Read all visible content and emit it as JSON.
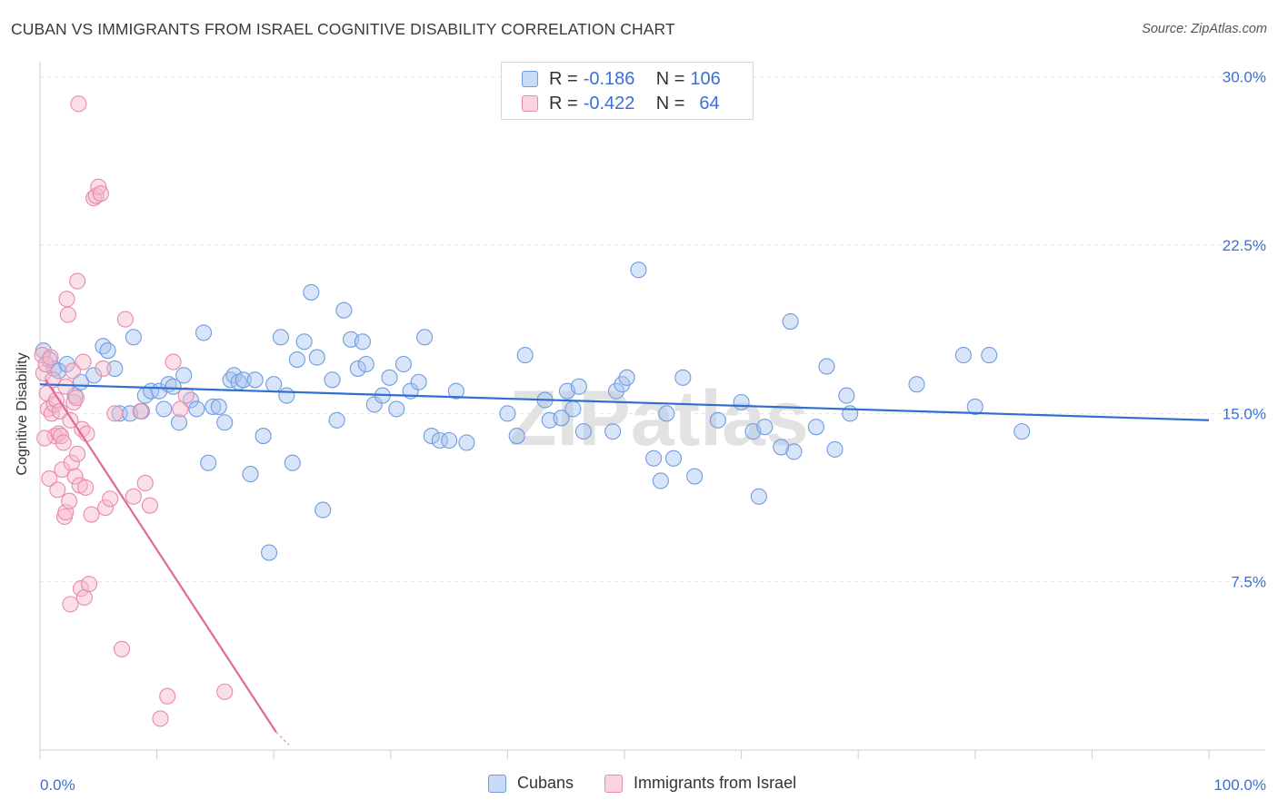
{
  "title": "CUBAN VS IMMIGRANTS FROM ISRAEL COGNITIVE DISABILITY CORRELATION CHART",
  "source": "Source: ZipAtlas.com",
  "watermark": "ZIPatlas",
  "legend_top": [
    {
      "r_label": "R = ",
      "r_value": "-0.186",
      "n_label": "N = ",
      "n_value": "106",
      "color": "#a9c4f0",
      "border": "#6f9ce0"
    },
    {
      "r_label": "R = ",
      "r_value": "-0.422",
      "n_label": "N = ",
      "n_value": "64",
      "color": "#f6b8cb",
      "border": "#e98aa9"
    }
  ],
  "chart_data": {
    "type": "scatter",
    "title": "CUBAN VS IMMIGRANTS FROM ISRAEL COGNITIVE DISABILITY CORRELATION CHART",
    "xlabel": "",
    "ylabel": "Cognitive Disability",
    "xlim": [
      0,
      100
    ],
    "ylim": [
      0,
      31
    ],
    "y_ticks": [
      7.5,
      15.0,
      22.5,
      30.0
    ],
    "y_tick_labels": [
      "7.5%",
      "15.0%",
      "22.5%",
      "30.0%"
    ],
    "x_tick_labels": [
      "0.0%",
      "100.0%"
    ],
    "grid": true,
    "legend_position": "bottom",
    "series": [
      {
        "name": "Cubans",
        "color": "#6f9ce0",
        "fill": "#a9c4f0",
        "trend": {
          "x": [
            0,
            100
          ],
          "y": [
            16.3,
            14.7
          ]
        },
        "points": [
          [
            0.3,
            17.8
          ],
          [
            0.8,
            17.4
          ],
          [
            1.2,
            17.0
          ],
          [
            1.6,
            16.9
          ],
          [
            2.3,
            17.2
          ],
          [
            3.0,
            15.8
          ],
          [
            3.5,
            16.4
          ],
          [
            4.6,
            16.7
          ],
          [
            5.4,
            18.0
          ],
          [
            5.8,
            17.8
          ],
          [
            6.4,
            17.0
          ],
          [
            6.8,
            15.0
          ],
          [
            7.7,
            15.0
          ],
          [
            8.0,
            18.4
          ],
          [
            8.7,
            15.1
          ],
          [
            9.0,
            15.8
          ],
          [
            9.5,
            16.0
          ],
          [
            10.2,
            16.0
          ],
          [
            10.6,
            15.2
          ],
          [
            11.0,
            16.3
          ],
          [
            11.4,
            16.2
          ],
          [
            11.9,
            14.6
          ],
          [
            12.3,
            16.7
          ],
          [
            12.9,
            15.6
          ],
          [
            13.4,
            15.2
          ],
          [
            14.0,
            18.6
          ],
          [
            14.4,
            12.8
          ],
          [
            14.8,
            15.3
          ],
          [
            15.3,
            15.3
          ],
          [
            15.8,
            14.6
          ],
          [
            16.3,
            16.5
          ],
          [
            16.6,
            16.7
          ],
          [
            17.0,
            16.4
          ],
          [
            17.4,
            16.5
          ],
          [
            18.0,
            12.3
          ],
          [
            18.4,
            16.5
          ],
          [
            19.1,
            14.0
          ],
          [
            19.6,
            8.8
          ],
          [
            20.0,
            16.3
          ],
          [
            20.6,
            18.4
          ],
          [
            21.1,
            15.8
          ],
          [
            21.6,
            12.8
          ],
          [
            22.0,
            17.4
          ],
          [
            22.6,
            18.2
          ],
          [
            23.2,
            20.4
          ],
          [
            23.7,
            17.5
          ],
          [
            24.2,
            10.7
          ],
          [
            25.0,
            16.5
          ],
          [
            25.4,
            14.7
          ],
          [
            26.0,
            19.6
          ],
          [
            26.6,
            18.3
          ],
          [
            27.2,
            17.0
          ],
          [
            27.6,
            18.2
          ],
          [
            27.9,
            17.2
          ],
          [
            28.6,
            15.4
          ],
          [
            29.3,
            15.8
          ],
          [
            29.9,
            16.6
          ],
          [
            30.5,
            15.2
          ],
          [
            31.1,
            17.2
          ],
          [
            31.7,
            16.0
          ],
          [
            32.4,
            16.4
          ],
          [
            32.9,
            18.4
          ],
          [
            33.5,
            14.0
          ],
          [
            34.2,
            13.8
          ],
          [
            35.0,
            13.8
          ],
          [
            35.6,
            16.0
          ],
          [
            36.5,
            13.7
          ],
          [
            40.0,
            15.0
          ],
          [
            40.8,
            14.0
          ],
          [
            41.5,
            17.6
          ],
          [
            43.2,
            15.6
          ],
          [
            43.6,
            14.7
          ],
          [
            44.6,
            14.8
          ],
          [
            45.1,
            16.0
          ],
          [
            45.6,
            15.2
          ],
          [
            46.1,
            16.2
          ],
          [
            46.5,
            14.2
          ],
          [
            49.0,
            14.2
          ],
          [
            49.3,
            16.0
          ],
          [
            49.8,
            16.3
          ],
          [
            50.2,
            16.6
          ],
          [
            51.2,
            21.4
          ],
          [
            52.5,
            13.0
          ],
          [
            53.1,
            12.0
          ],
          [
            53.6,
            15.0
          ],
          [
            54.2,
            13.0
          ],
          [
            55.0,
            16.6
          ],
          [
            56.0,
            12.2
          ],
          [
            58.0,
            14.7
          ],
          [
            60.0,
            15.5
          ],
          [
            61.0,
            14.2
          ],
          [
            61.5,
            11.3
          ],
          [
            62.0,
            14.4
          ],
          [
            63.4,
            13.5
          ],
          [
            64.2,
            19.1
          ],
          [
            64.5,
            13.3
          ],
          [
            66.4,
            14.4
          ],
          [
            67.3,
            17.1
          ],
          [
            68.0,
            13.4
          ],
          [
            69.0,
            15.8
          ],
          [
            69.3,
            15.0
          ],
          [
            75.0,
            16.3
          ],
          [
            79.0,
            17.6
          ],
          [
            80.0,
            15.3
          ],
          [
            81.2,
            17.6
          ],
          [
            84.0,
            14.2
          ]
        ]
      },
      {
        "name": "Immigrants from Israel",
        "color": "#e98aa9",
        "fill": "#f6b8cb",
        "trend": {
          "x": [
            0.5,
            20.2
          ],
          "y": [
            16.5,
            0.8
          ]
        },
        "points": [
          [
            0.2,
            17.6
          ],
          [
            0.3,
            16.8
          ],
          [
            0.5,
            17.2
          ],
          [
            0.6,
            15.9
          ],
          [
            0.7,
            15.2
          ],
          [
            0.9,
            17.5
          ],
          [
            1.0,
            15.0
          ],
          [
            1.1,
            16.5
          ],
          [
            1.2,
            15.4
          ],
          [
            1.3,
            14.0
          ],
          [
            1.4,
            15.6
          ],
          [
            1.6,
            14.1
          ],
          [
            1.7,
            15.1
          ],
          [
            1.8,
            14.0
          ],
          [
            1.9,
            12.5
          ],
          [
            2.0,
            13.7
          ],
          [
            2.1,
            10.4
          ],
          [
            2.2,
            10.6
          ],
          [
            2.3,
            20.1
          ],
          [
            2.4,
            19.4
          ],
          [
            2.5,
            11.1
          ],
          [
            2.6,
            6.5
          ],
          [
            2.7,
            12.8
          ],
          [
            2.8,
            16.9
          ],
          [
            2.9,
            15.5
          ],
          [
            3.0,
            12.2
          ],
          [
            3.1,
            15.7
          ],
          [
            3.2,
            20.9
          ],
          [
            3.3,
            28.8
          ],
          [
            3.4,
            11.8
          ],
          [
            3.5,
            7.2
          ],
          [
            3.6,
            14.3
          ],
          [
            3.7,
            17.3
          ],
          [
            3.8,
            6.8
          ],
          [
            3.9,
            11.7
          ],
          [
            4.0,
            14.1
          ],
          [
            4.2,
            7.4
          ],
          [
            4.4,
            10.5
          ],
          [
            4.6,
            24.6
          ],
          [
            4.8,
            24.7
          ],
          [
            5.0,
            25.1
          ],
          [
            5.2,
            24.8
          ],
          [
            5.4,
            17.0
          ],
          [
            5.6,
            10.8
          ],
          [
            6.0,
            11.2
          ],
          [
            6.4,
            15.0
          ],
          [
            7.0,
            4.5
          ],
          [
            7.3,
            19.2
          ],
          [
            8.0,
            11.3
          ],
          [
            8.6,
            15.1
          ],
          [
            9.0,
            11.9
          ],
          [
            9.4,
            10.9
          ],
          [
            10.3,
            1.4
          ],
          [
            10.9,
            2.4
          ],
          [
            11.4,
            17.3
          ],
          [
            12.0,
            15.2
          ],
          [
            12.5,
            15.8
          ],
          [
            15.8,
            2.6
          ],
          [
            0.4,
            13.9
          ],
          [
            0.8,
            12.1
          ],
          [
            1.5,
            11.6
          ],
          [
            2.2,
            16.2
          ],
          [
            2.6,
            14.7
          ],
          [
            3.2,
            13.2
          ]
        ]
      }
    ]
  }
}
